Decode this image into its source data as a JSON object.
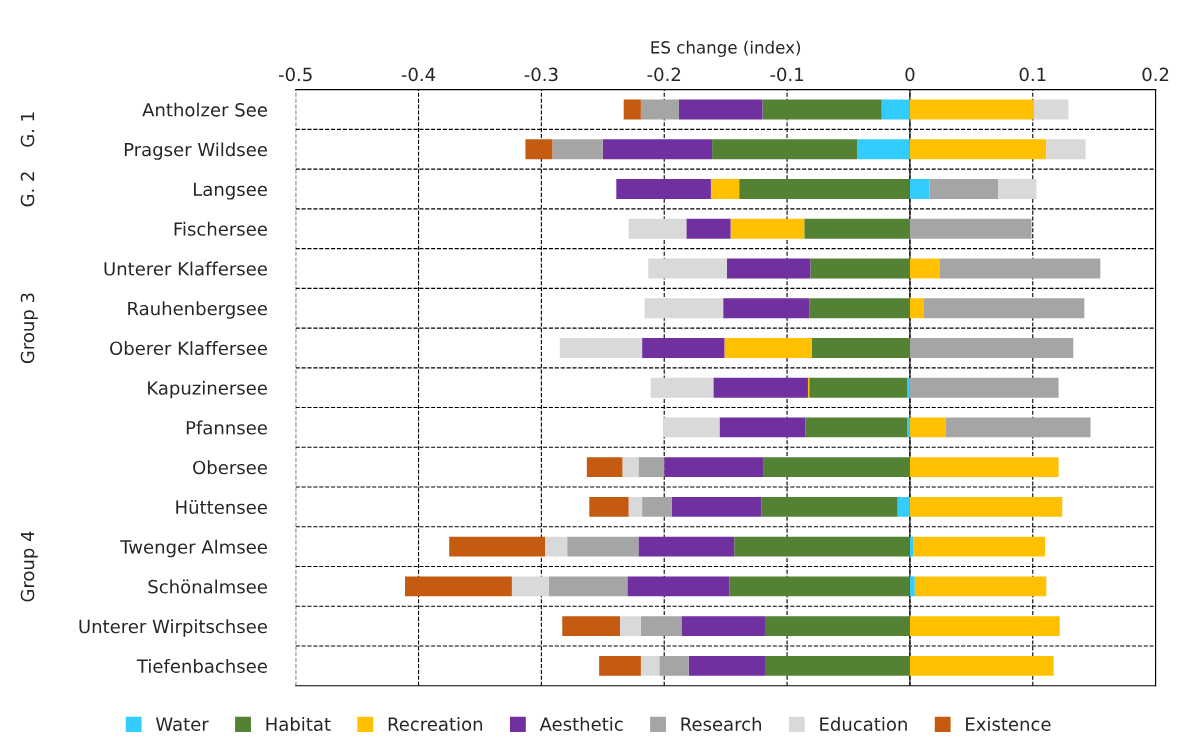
{
  "chart_data": {
    "type": "bar",
    "orientation": "horizontal",
    "stacked": true,
    "xlabel": "ES change (index)",
    "categories": [
      "Antholzer See",
      "Pragser Wildsee",
      "Langsee",
      "Fischersee",
      "Unterer Klaffersee",
      "Rauhenbergsee",
      "Oberer Klaffersee",
      "Kapuzinersee",
      "Pfannsee",
      "Obersee",
      "Hüttensee",
      "Twenger Almsee",
      "Schönalmsee",
      "Unterer Wirpitschsee",
      "Tiefenbachsee"
    ],
    "series": [
      {
        "name": "Water",
        "color": "#33ccff",
        "values": [
          -0.023,
          -0.043,
          0.016,
          0,
          null,
          0,
          null,
          -0.002,
          -0.002,
          null,
          -0.01,
          0.003,
          0.004,
          null,
          0
        ]
      },
      {
        "name": "Habitat",
        "color": "#548235",
        "values": [
          -0.097,
          -0.118,
          -0.139,
          -0.086,
          -0.081,
          -0.082,
          -0.08,
          -0.08,
          -0.083,
          -0.119,
          -0.111,
          -0.143,
          -0.147,
          -0.118,
          -0.118
        ]
      },
      {
        "name": "Recreation",
        "color": "#ffc000",
        "values": [
          0.101,
          0.111,
          -0.023,
          -0.06,
          0.024,
          0.011,
          -0.071,
          -0.001,
          0.029,
          0.121,
          0.124,
          0.107,
          0.107,
          0.122,
          0.117
        ]
      },
      {
        "name": "Aesthetic",
        "color": "#7030a0",
        "values": [
          -0.068,
          -0.089,
          -0.077,
          -0.036,
          -0.068,
          -0.07,
          -0.067,
          -0.077,
          -0.07,
          -0.081,
          -0.073,
          -0.078,
          -0.083,
          -0.068,
          -0.062
        ]
      },
      {
        "name": "Research",
        "color": "#a5a5a5",
        "values": [
          -0.031,
          -0.041,
          0.056,
          0.099,
          0.131,
          0.131,
          0.133,
          0.121,
          0.118,
          -0.021,
          -0.024,
          -0.058,
          -0.064,
          -0.033,
          -0.024
        ]
      },
      {
        "name": "Education",
        "color": "#d9d9d9",
        "values": [
          0.028,
          0.032,
          0.031,
          -0.047,
          -0.064,
          -0.064,
          -0.067,
          -0.051,
          -0.046,
          -0.013,
          -0.011,
          -0.018,
          -0.03,
          -0.017,
          -0.015
        ]
      },
      {
        "name": "Existence",
        "color": "#c55a11",
        "values": [
          -0.014,
          -0.022,
          0,
          0,
          0,
          0,
          0,
          0,
          0,
          -0.029,
          -0.032,
          -0.078,
          -0.087,
          -0.047,
          -0.034
        ]
      }
    ],
    "xlim": [
      -0.5,
      0.2
    ],
    "xticks": [
      -0.5,
      -0.4,
      -0.3,
      -0.2,
      -0.1,
      0,
      0.1,
      0.2
    ],
    "annotations": [
      "G. 1",
      "G. 2",
      "Group 3",
      "Group 4"
    ],
    "grid": true,
    "legend": "bottom"
  }
}
